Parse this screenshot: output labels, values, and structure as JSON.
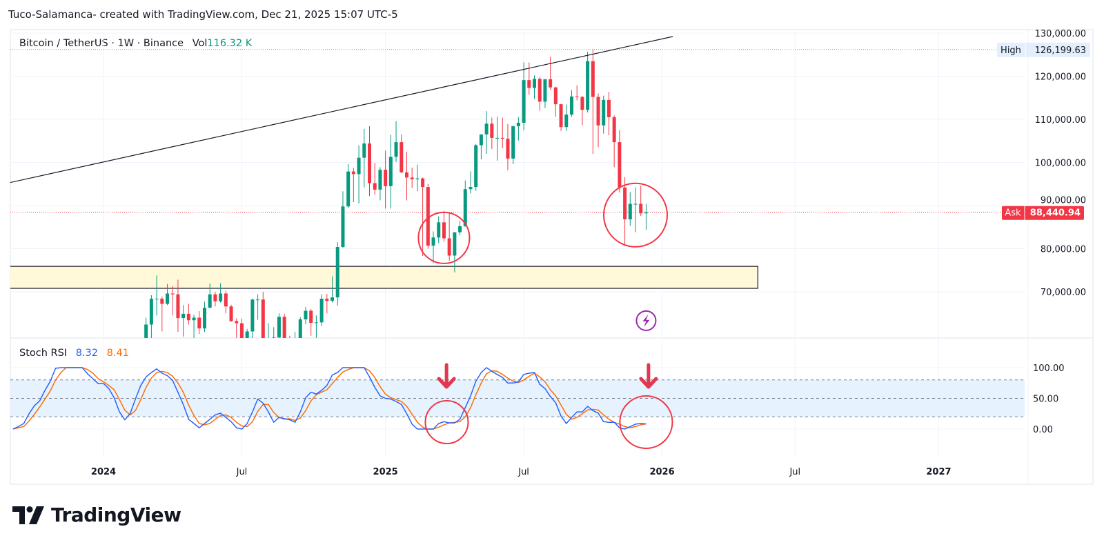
{
  "header": {
    "attribution": "Tuco-Salamanca- created with TradingView.com, Dec 21, 2025 15:07 UTC-5",
    "symbol": "Bitcoin / TetherUS · 1W · Binance",
    "vol_label": "Vol",
    "vol_value": "116.32 K"
  },
  "brand": {
    "name": "TradingView"
  },
  "colors": {
    "up": "#089981",
    "down": "#f23645",
    "stoch_k": "#2962ff",
    "stoch_d": "#ff6d00",
    "zone_fill": "#fff8d9",
    "annotation": "#f23645",
    "band_fill": "#e6f2fd",
    "alert_icon": "#9c27b0"
  },
  "chart_data": [
    {
      "type": "candlestick",
      "interval": "1W",
      "first_week": "2024-02-26",
      "ohlc": [
        [
          51700,
          64000,
          50900,
          62400
        ],
        [
          62400,
          69200,
          59000,
          68400
        ],
        [
          68400,
          73800,
          64500,
          68400
        ],
        [
          68400,
          68900,
          60800,
          67200
        ],
        [
          67200,
          71800,
          66900,
          69600
        ],
        [
          69600,
          71300,
          64500,
          69400
        ],
        [
          69400,
          72800,
          60700,
          63900
        ],
        [
          63900,
          66900,
          59600,
          64900
        ],
        [
          64900,
          67200,
          62400,
          63400
        ],
        [
          63400,
          64700,
          56500,
          64000
        ],
        [
          64000,
          65500,
          60200,
          61500
        ],
        [
          61500,
          67700,
          60700,
          66300
        ],
        [
          66300,
          71900,
          66200,
          69400
        ],
        [
          69400,
          70000,
          66600,
          67800
        ],
        [
          67800,
          72000,
          67500,
          69600
        ],
        [
          69600,
          70200,
          65000,
          66600
        ],
        [
          66600,
          67000,
          63000,
          63200
        ],
        [
          63200,
          63800,
          58400,
          62700
        ],
        [
          62700,
          63800,
          53500,
          55800
        ],
        [
          55800,
          61400,
          54300,
          60800
        ],
        [
          60800,
          68400,
          59100,
          68200
        ],
        [
          68200,
          69400,
          63500,
          68200
        ],
        [
          68200,
          70000,
          57100,
          58100
        ],
        [
          58100,
          62700,
          49000,
          58700
        ],
        [
          58700,
          61800,
          56100,
          59400
        ],
        [
          59400,
          65000,
          57800,
          64200
        ],
        [
          64200,
          64900,
          57200,
          57300
        ],
        [
          57300,
          59800,
          52500,
          54800
        ],
        [
          54800,
          60700,
          54600,
          59100
        ],
        [
          59100,
          64100,
          57500,
          63600
        ],
        [
          63600,
          66500,
          62500,
          65600
        ],
        [
          65600,
          66000,
          59800,
          62800
        ],
        [
          62800,
          64500,
          58900,
          62900
        ],
        [
          62900,
          69400,
          62000,
          68400
        ],
        [
          68400,
          69500,
          65000,
          67900
        ],
        [
          67900,
          73600,
          67500,
          68700
        ],
        [
          68700,
          81500,
          66800,
          80400
        ],
        [
          80400,
          93300,
          80200,
          89800
        ],
        [
          89800,
          99600,
          89400,
          97900
        ],
        [
          97900,
          98700,
          90800,
          97300
        ],
        [
          97300,
          104000,
          90500,
          101100
        ],
        [
          101100,
          107800,
          94200,
          104400
        ],
        [
          104400,
          108400,
          92200,
          95200
        ],
        [
          95200,
          99900,
          92500,
          93700
        ],
        [
          93700,
          98900,
          91200,
          98300
        ],
        [
          98300,
          102700,
          89300,
          94500
        ],
        [
          94500,
          106400,
          89300,
          101300
        ],
        [
          101300,
          109600,
          100100,
          104700
        ],
        [
          104700,
          106500,
          97500,
          97700
        ],
        [
          97700,
          102500,
          91200,
          96500
        ],
        [
          96500,
          98800,
          94100,
          96100
        ],
        [
          96100,
          99500,
          93300,
          96300
        ],
        [
          96300,
          96500,
          78300,
          94300
        ],
        [
          94300,
          95000,
          80000,
          80700
        ],
        [
          80700,
          84000,
          76600,
          82600
        ],
        [
          82600,
          87500,
          81300,
          86100
        ],
        [
          86100,
          88800,
          81600,
          82400
        ],
        [
          82400,
          88500,
          77200,
          78400
        ],
        [
          78400,
          83800,
          74500,
          83800
        ],
        [
          83800,
          86400,
          83100,
          85200
        ],
        [
          85200,
          95800,
          85100,
          93800
        ],
        [
          93800,
          97900,
          92800,
          94300
        ],
        [
          94300,
          104300,
          93400,
          104000
        ],
        [
          104000,
          106500,
          100700,
          106500
        ],
        [
          106500,
          111900,
          102000,
          109000
        ],
        [
          109000,
          110400,
          103100,
          105700
        ],
        [
          105700,
          110600,
          100400,
          105700
        ],
        [
          105700,
          110400,
          103300,
          105500
        ],
        [
          105500,
          108900,
          98200,
          100900
        ],
        [
          100900,
          108500,
          99600,
          108400
        ],
        [
          108400,
          110500,
          105100,
          109200
        ],
        [
          109200,
          123200,
          107500,
          119100
        ],
        [
          119100,
          123200,
          115700,
          117300
        ],
        [
          117300,
          120200,
          114700,
          119400
        ],
        [
          119400,
          119800,
          112000,
          114100
        ],
        [
          114100,
          119300,
          112600,
          119300
        ],
        [
          119300,
          124500,
          116800,
          117400
        ],
        [
          117400,
          117600,
          110600,
          113500
        ],
        [
          113500,
          113600,
          107300,
          108200
        ],
        [
          108200,
          113400,
          107300,
          111100
        ],
        [
          111100,
          116800,
          110600,
          115300
        ],
        [
          115300,
          117900,
          114400,
          115200
        ],
        [
          115200,
          115400,
          108600,
          112200
        ],
        [
          112200,
          125700,
          111600,
          123500
        ],
        [
          123500,
          126199.63,
          102000,
          115200
        ],
        [
          115200,
          116000,
          103500,
          108600
        ],
        [
          108600,
          115500,
          106700,
          114500
        ],
        [
          114500,
          116400,
          106300,
          110500
        ],
        [
          110500,
          110900,
          98900,
          104700
        ],
        [
          104700,
          107500,
          93000,
          94200
        ],
        [
          94200,
          96600,
          80600,
          86800
        ],
        [
          86800,
          93100,
          85300,
          90400
        ],
        [
          90400,
          94200,
          83800,
          90400
        ],
        [
          90400,
          94600,
          87600,
          88200
        ],
        [
          88200,
          90400,
          84400,
          88440.94
        ]
      ],
      "y_ticks": [
        "130,000.00",
        "120,000.00",
        "110,000.00",
        "100,000.00",
        "90,000.00",
        "80,000.00",
        "70,000.00"
      ],
      "y_tick_values": [
        130000,
        120000,
        110000,
        100000,
        90000,
        80000,
        70000
      ],
      "ylim": [
        61000,
        131000
      ],
      "x_ticks": [
        {
          "label": "2024",
          "date": "2024-01-01"
        },
        {
          "label": "Jul",
          "date": "2024-07-01"
        },
        {
          "label": "2025",
          "date": "2025-01-06"
        },
        {
          "label": "Jul",
          "date": "2025-07-07"
        },
        {
          "label": "2026",
          "date": "2026-01-05"
        },
        {
          "label": "Jul",
          "date": "2026-06-29"
        },
        {
          "label": "2027",
          "date": "2027-01-04"
        }
      ],
      "high_marker": {
        "label": "High",
        "value": 126199.63,
        "text": "126,199.63"
      },
      "ask_marker": {
        "label": "Ask",
        "value": 88440.94,
        "text": "88,440.94"
      },
      "trendline": {
        "from": {
          "date": "2023-08-07",
          "price": 94400
        },
        "to": {
          "date": "2026-01-19",
          "price": 129200
        }
      },
      "zone": {
        "from_date": "2023-08-14",
        "to_date": "2026-05-11",
        "top": 75900,
        "bottom": 70800
      },
      "circles": [
        {
          "date": "2025-03-24",
          "price": 82500
        },
        {
          "date": "2025-12-01",
          "price": 87800
        }
      ],
      "alert_icon": {
        "name": "lightning-icon",
        "date": "2025-12-15",
        "price": 63300
      }
    },
    {
      "type": "line",
      "title": "Stoch RSI",
      "interval": "1W",
      "first_week": "2023-09-04",
      "series": [
        {
          "name": "K",
          "last": "8.32",
          "values": [
            0,
            4,
            9,
            25,
            38,
            46,
            63,
            78,
            99,
            100,
            100,
            100,
            100,
            100,
            90,
            82,
            74,
            74,
            66,
            51,
            28,
            15,
            25,
            49,
            71,
            85,
            92,
            98,
            91,
            87,
            79,
            60,
            40,
            16,
            9,
            2,
            9,
            16,
            23,
            26,
            19,
            12,
            2,
            0,
            9,
            28,
            49,
            42,
            28,
            11,
            19,
            17,
            15,
            11,
            28,
            51,
            60,
            57,
            63,
            71,
            88,
            92,
            100,
            100,
            100,
            100,
            100,
            85,
            68,
            54,
            50,
            49,
            45,
            40,
            25,
            8,
            0,
            0,
            0,
            0,
            9,
            12,
            10,
            10,
            16,
            35,
            54,
            78,
            92,
            100,
            94,
            89,
            84,
            75,
            75,
            77,
            89,
            91,
            92,
            73,
            66,
            53,
            43,
            21,
            9,
            19,
            28,
            28,
            37,
            30,
            26,
            12,
            11,
            11,
            2,
            0,
            4,
            8,
            9,
            8.32
          ]
        },
        {
          "name": "D",
          "last": "8.41",
          "values": [
            0,
            2,
            4,
            13,
            24,
            36,
            49,
            62,
            80,
            92,
            100,
            100,
            100,
            100,
            97,
            91,
            82,
            77,
            71,
            64,
            48,
            31,
            23,
            30,
            48,
            68,
            83,
            92,
            94,
            92,
            86,
            75,
            60,
            39,
            22,
            9,
            7,
            9,
            16,
            22,
            23,
            19,
            11,
            5,
            4,
            12,
            29,
            40,
            40,
            27,
            19,
            16,
            17,
            14,
            18,
            30,
            46,
            56,
            60,
            64,
            74,
            84,
            93,
            97,
            100,
            100,
            100,
            95,
            84,
            69,
            57,
            51,
            48,
            45,
            37,
            24,
            11,
            3,
            0,
            0,
            3,
            7,
            10,
            11,
            12,
            20,
            35,
            56,
            75,
            90,
            95,
            94,
            89,
            83,
            78,
            76,
            80,
            86,
            91,
            85,
            77,
            64,
            54,
            39,
            24,
            16,
            19,
            25,
            31,
            32,
            31,
            23,
            16,
            11,
            8,
            4,
            2,
            4,
            7,
            8.41
          ]
        }
      ],
      "bands": {
        "upper": 80,
        "middle": 50,
        "lower": 20
      },
      "y_ticks": [
        "100.00",
        "50.00",
        "0.00"
      ],
      "y_tick_values": [
        100,
        50,
        0
      ],
      "ylim": [
        0,
        100
      ],
      "arrows": [
        {
          "date": "2025-03-31"
        },
        {
          "date": "2025-12-29"
        }
      ],
      "circles": [
        {
          "date": "2025-03-24",
          "value": 11
        },
        {
          "date": "2025-12-15",
          "value": 11
        }
      ]
    }
  ]
}
